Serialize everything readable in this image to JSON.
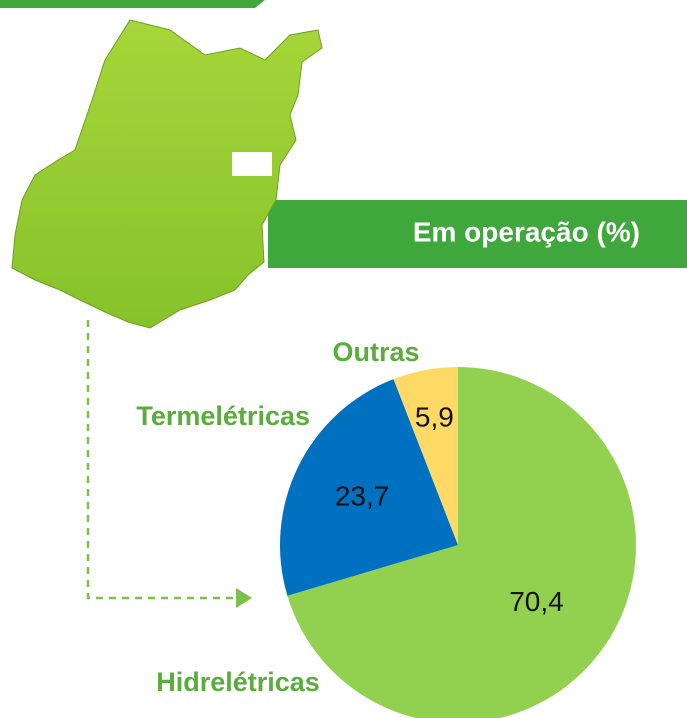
{
  "chart_data": {
    "type": "pie",
    "title": "Em operação (%)",
    "categories": [
      "Hidrelétricas",
      "Termelétricas",
      "Outras"
    ],
    "values": [
      70.4,
      23.7,
      5.9
    ],
    "value_labels": [
      "70,4",
      "23,7",
      "5,9"
    ],
    "colors": [
      "#92d050",
      "#0070c0",
      "#ffd966"
    ]
  }
}
